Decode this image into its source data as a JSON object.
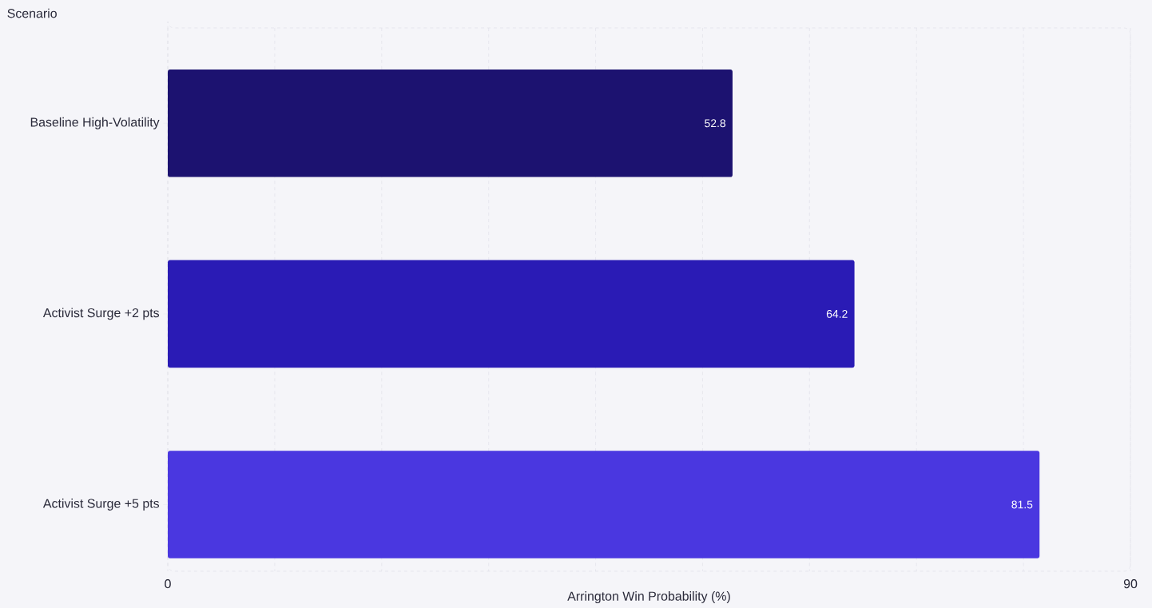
{
  "chart_data": {
    "type": "bar",
    "orientation": "horizontal",
    "ylabel": "Scenario",
    "xlabel": "Arrington Win Probability (%)",
    "categories": [
      "Baseline High-Volatility",
      "Activist Surge +2 pts",
      "Activist Surge +5 pts"
    ],
    "values": [
      52.8,
      64.2,
      81.5
    ],
    "colors": [
      "#1c1270",
      "#2a1bb5",
      "#4a37e0"
    ],
    "xlim": [
      0,
      90
    ],
    "xticks": [
      0,
      {
        "value": 10,
        "label": null
      },
      {
        "value": 20,
        "label": null
      },
      {
        "value": 30,
        "label": null
      },
      {
        "value": 40,
        "label": null
      },
      {
        "value": 50,
        "label": null
      },
      {
        "value": 60,
        "label": null
      },
      {
        "value": 70,
        "label": null
      },
      {
        "value": 80,
        "label": null
      },
      90
    ],
    "grid": "x",
    "data_labels": true
  }
}
